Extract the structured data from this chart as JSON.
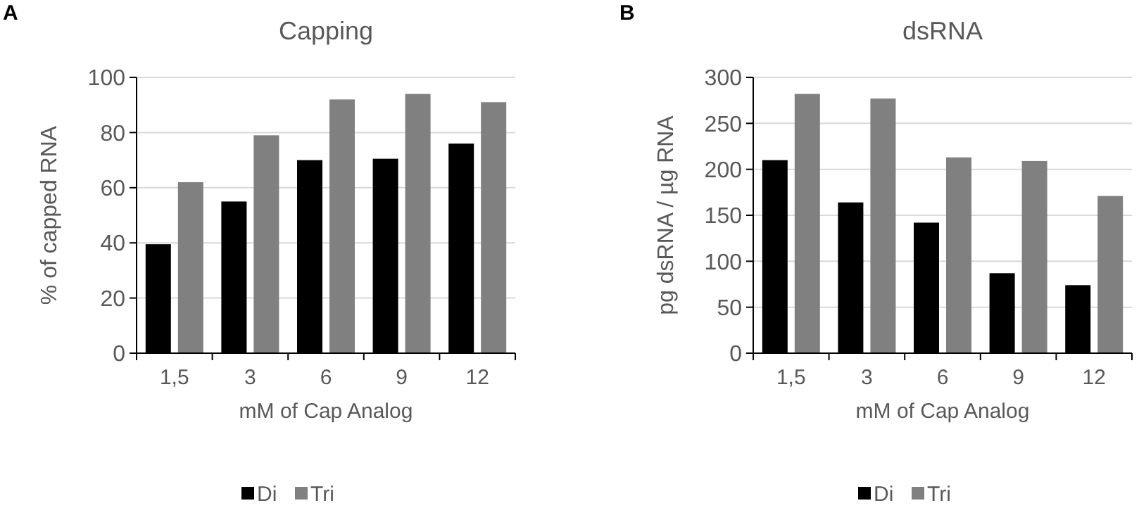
{
  "chart_data": [
    {
      "type": "bar",
      "title": "Capping",
      "annotations": [
        "A"
      ],
      "xlabel": "mM of Cap Analog",
      "ylabel": "% of capped RNA",
      "categories": [
        "1,5",
        "3",
        "6",
        "9",
        "12"
      ],
      "series": [
        {
          "name": "Di",
          "color": "#000000",
          "values": [
            39.5,
            55,
            70,
            70.5,
            76
          ]
        },
        {
          "name": "Tri",
          "color": "#808080",
          "values": [
            62,
            79,
            92,
            94,
            91
          ]
        }
      ],
      "ylim": [
        0,
        100
      ],
      "yticks": [
        0,
        20,
        40,
        60,
        80,
        100
      ],
      "grid": "y",
      "legend": "bottom"
    },
    {
      "type": "bar",
      "title": "dsRNA",
      "annotations": [
        "B"
      ],
      "xlabel": "mM of Cap Analog",
      "ylabel": "pg dsRNA / µg RNA",
      "categories": [
        "1,5",
        "3",
        "6",
        "9",
        "12"
      ],
      "series": [
        {
          "name": "Di",
          "color": "#000000",
          "values": [
            210,
            164,
            142,
            87,
            74
          ]
        },
        {
          "name": "Tri",
          "color": "#808080",
          "values": [
            282,
            277,
            213,
            209,
            171
          ]
        }
      ],
      "ylim": [
        0,
        300
      ],
      "yticks": [
        0,
        50,
        100,
        150,
        200,
        250,
        300
      ],
      "grid": "y",
      "legend": "bottom"
    }
  ]
}
